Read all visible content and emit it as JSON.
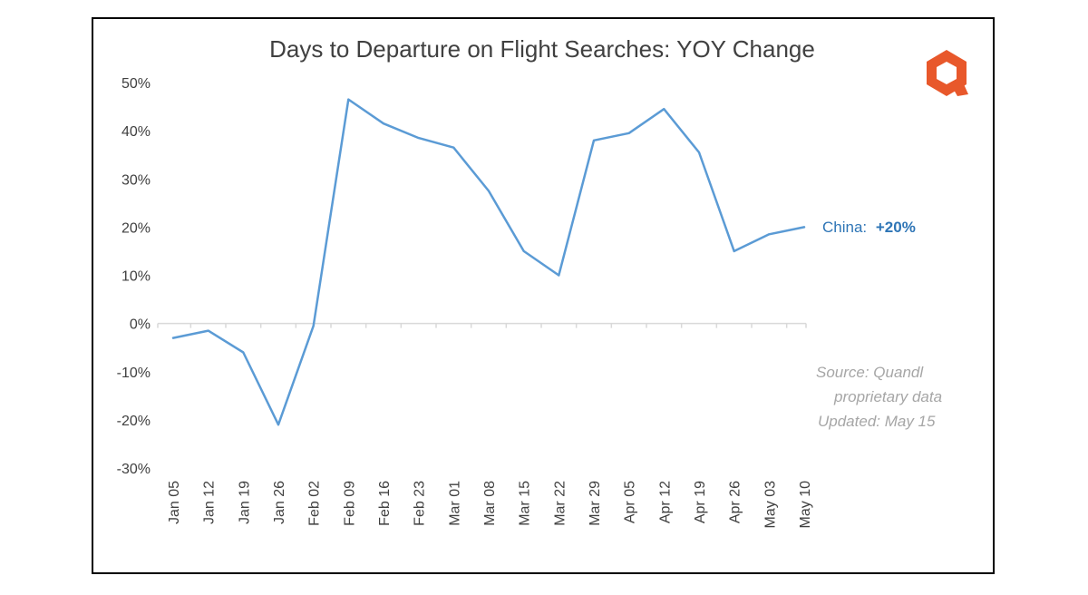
{
  "chart_data": {
    "type": "line",
    "title": "Days to Departure on Flight Searches: YOY Change",
    "xlabel": "",
    "ylabel": "",
    "categories": [
      "Jan 05",
      "Jan 12",
      "Jan 19",
      "Jan 26",
      "Feb 02",
      "Feb 09",
      "Feb 16",
      "Feb 23",
      "Mar 01",
      "Mar 08",
      "Mar 15",
      "Mar 22",
      "Mar 29",
      "Apr 05",
      "Apr 12",
      "Apr 19",
      "Apr 26",
      "May 03",
      "May 10"
    ],
    "series": [
      {
        "name": "China",
        "values": [
          -3,
          -1.5,
          -6,
          -21,
          -0.5,
          46.5,
          41.5,
          38.5,
          36.5,
          27.5,
          15,
          10,
          38,
          39.5,
          44.5,
          35.5,
          15,
          18.5,
          20
        ],
        "color": "#5b9bd5"
      }
    ],
    "ylim": [
      -30,
      50
    ],
    "yticks": [
      "-30%",
      "-20%",
      "-10%",
      "0%",
      "10%",
      "20%",
      "30%",
      "40%",
      "50%"
    ],
    "grid": false,
    "series_label": {
      "name": "China:",
      "value": "+20%"
    },
    "source_note": [
      "Source: Quandl",
      "proprietary data",
      "Updated: May 15"
    ],
    "logo": {
      "icon": "quandl-logo-icon",
      "color": "#e8582b"
    }
  }
}
